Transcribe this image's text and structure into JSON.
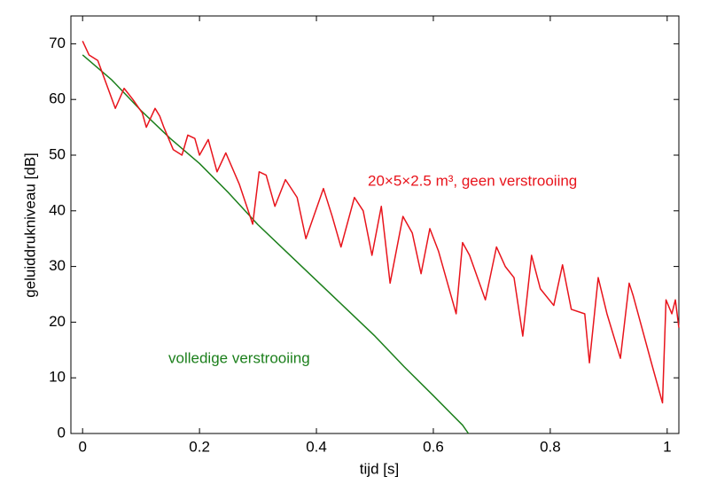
{
  "chart_data": {
    "type": "line",
    "xlabel": "tijd [s]",
    "ylabel": "geluiddrukniveau  [dB]",
    "xlim": [
      -0.02,
      1.02
    ],
    "ylim": [
      0,
      75
    ],
    "xticks": [
      0,
      0.2,
      0.4,
      0.6,
      0.8,
      1
    ],
    "yticks": [
      0,
      10,
      20,
      30,
      40,
      50,
      60,
      70
    ],
    "grid": false,
    "annotations": [
      {
        "text": "20×5×2.5 m³, geen verstrooiing",
        "color": "#e8141c"
      },
      {
        "text": "volledige verstrooiing",
        "color": "#1b7f1b"
      }
    ],
    "series": [
      {
        "color": "#e8141c",
        "x": [
          0,
          0.011,
          0.026,
          0.056,
          0.071,
          0.086,
          0.102,
          0.109,
          0.124,
          0.132,
          0.139,
          0.155,
          0.17,
          0.18,
          0.192,
          0.2,
          0.215,
          0.23,
          0.245,
          0.268,
          0.291,
          0.302,
          0.314,
          0.329,
          0.347,
          0.367,
          0.382,
          0.412,
          0.427,
          0.442,
          0.465,
          0.48,
          0.495,
          0.511,
          0.526,
          0.548,
          0.564,
          0.579,
          0.594,
          0.609,
          0.639,
          0.65,
          0.662,
          0.689,
          0.708,
          0.723,
          0.738,
          0.753,
          0.768,
          0.783,
          0.806,
          0.821,
          0.836,
          0.859,
          0.867,
          0.882,
          0.897,
          0.92,
          0.935,
          0.942,
          0.973,
          0.992,
          0.998,
          1.008,
          1.014,
          1.02
        ],
        "values": [
          70.5,
          68,
          67,
          58.4,
          62,
          60,
          57.6,
          55,
          58.4,
          57,
          55,
          51,
          50,
          53.6,
          53,
          50,
          52.8,
          47,
          50.4,
          44.8,
          37.6,
          47,
          46.4,
          40.8,
          45.6,
          42.4,
          35,
          44,
          39,
          33.5,
          42.4,
          40,
          32,
          40.8,
          27,
          39,
          36,
          28.7,
          36.8,
          32.7,
          21.5,
          34.3,
          32,
          24,
          33.5,
          30,
          28,
          17.5,
          32,
          26,
          23,
          30.3,
          22.3,
          21.5,
          12.7,
          28,
          21.5,
          13.5,
          27,
          24.7,
          12.7,
          5.5,
          24,
          21.5,
          24,
          19
        ]
      },
      {
        "color": "#1b7f1b",
        "x": [
          0,
          0.05,
          0.1,
          0.15,
          0.2,
          0.25,
          0.3,
          0.35,
          0.4,
          0.45,
          0.5,
          0.55,
          0.6,
          0.65,
          0.66
        ],
        "values": [
          68,
          63.5,
          58,
          53,
          48.5,
          43.2,
          37.5,
          32.5,
          27.5,
          22.5,
          17.5,
          12,
          6.8,
          1.5,
          0
        ]
      }
    ]
  }
}
